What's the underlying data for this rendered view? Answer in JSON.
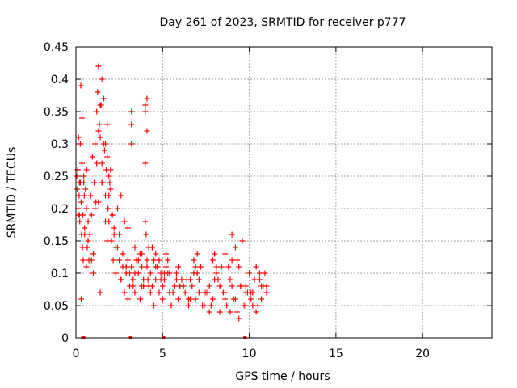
{
  "chart_data": {
    "type": "scatter",
    "title": "Day 261 of 2023, SRMTID for receiver p777",
    "xlabel": "GPS time / hours",
    "ylabel": "SRMTID / TECUs",
    "xlim": [
      0,
      24
    ],
    "ylim": [
      0,
      0.45
    ],
    "xticks": [
      0,
      5,
      10,
      15,
      20
    ],
    "yticks": [
      0,
      0.05,
      0.1,
      0.15,
      0.2,
      0.25,
      0.3,
      0.35,
      0.4,
      0.45
    ],
    "grid": true,
    "marker": "+",
    "color": "#ff0000",
    "series": [
      {
        "name": "SRMTID",
        "x": [
          0.05,
          0.08,
          0.1,
          0.12,
          0.15,
          0.18,
          0.2,
          0.22,
          0.25,
          0.28,
          0.3,
          0.32,
          0.35,
          0.38,
          0.4,
          0.42,
          0.45,
          0.48,
          0.5,
          0.55,
          0.6,
          0.62,
          0.65,
          0.7,
          0.75,
          0.8,
          0.85,
          0.9,
          0.95,
          1.0,
          1.05,
          1.1,
          1.15,
          1.2,
          1.25,
          1.3,
          1.35,
          1.4,
          1.45,
          1.5,
          1.55,
          1.6,
          1.65,
          1.7,
          1.75,
          1.8,
          1.85,
          1.9,
          1.95,
          2.0,
          2.05,
          2.1,
          2.15,
          2.2,
          2.3,
          2.4,
          2.5,
          2.6,
          2.7,
          2.8,
          2.9,
          3.0,
          3.1,
          3.2,
          3.3,
          3.4,
          3.5,
          3.6,
          3.7,
          3.8,
          3.9,
          4.0,
          4.05,
          4.1,
          4.15,
          4.2,
          4.3,
          4.4,
          4.5,
          4.6,
          4.7,
          4.8,
          4.9,
          5.0,
          5.1,
          5.2,
          5.3,
          5.5,
          5.7,
          5.9,
          6.1,
          6.3,
          6.5,
          6.7,
          6.9,
          7.1,
          7.3,
          7.5,
          7.7,
          7.9,
          8.1,
          8.3,
          8.5,
          8.7,
          8.9,
          9.1,
          9.3,
          9.5,
          9.7,
          9.9,
          10.1,
          10.3,
          10.5,
          10.7,
          10.9,
          11.0,
          0.3,
          0.5,
          0.7,
          0.9,
          1.1,
          1.3,
          1.5,
          1.7,
          1.9,
          2.1,
          2.3,
          2.5,
          2.7,
          2.9,
          3.1,
          3.3,
          3.5,
          3.7,
          3.9,
          4.1,
          4.3,
          4.5,
          4.7,
          4.9,
          5.1,
          5.3,
          5.6,
          5.9,
          6.2,
          6.5,
          6.8,
          7.1,
          7.4,
          7.7,
          8.0,
          8.3,
          8.6,
          8.9,
          9.2,
          9.5,
          9.8,
          10.1,
          10.4,
          10.7,
          11.0,
          0.2,
          0.6,
          1.0,
          1.4,
          1.8,
          2.2,
          2.6,
          3.0,
          3.4,
          3.8,
          4.2,
          4.6,
          5.0,
          5.4,
          5.8,
          6.2,
          6.6,
          7.0,
          7.4,
          7.8,
          8.2,
          8.6,
          9.0,
          9.4,
          9.8,
          10.2,
          10.6,
          1.2,
          1.3,
          1.4,
          1.5,
          1.6,
          1.7,
          1.8,
          1.9,
          2.0,
          0.1,
          0.15,
          0.25,
          0.35,
          0.45,
          3.2,
          3.2,
          3.2,
          4.0,
          4.0,
          4.0,
          4.1,
          4.1,
          9.0,
          9.2,
          9.3,
          9.4,
          9.6,
          8.6,
          6.8,
          6.9,
          7.0,
          7.9,
          8.0,
          8.1,
          2.4,
          2.6,
          2.8,
          3.0,
          3.4,
          3.6,
          3.8,
          4.4,
          4.6,
          4.8,
          5.2,
          5.4,
          5.8,
          6.0,
          6.4,
          6.6,
          7.2,
          7.6,
          8.4,
          8.8,
          9.0,
          9.8,
          10.0,
          10.2,
          10.4,
          10.6,
          10.8
        ],
        "y": [
          0.25,
          0.23,
          0.26,
          0.2,
          0.31,
          0.22,
          0.24,
          0.18,
          0.3,
          0.39,
          0.21,
          0.16,
          0.27,
          0.14,
          0.19,
          0.12,
          0.24,
          0.22,
          0.16,
          0.23,
          0.2,
          0.26,
          0.14,
          0.18,
          0.12,
          0.16,
          0.22,
          0.19,
          0.28,
          0.13,
          0.24,
          0.3,
          0.21,
          0.35,
          0.38,
          0.42,
          0.33,
          0.31,
          0.36,
          0.27,
          0.24,
          0.3,
          0.29,
          0.22,
          0.26,
          0.33,
          0.2,
          0.18,
          0.24,
          0.23,
          0.15,
          0.19,
          0.12,
          0.16,
          0.1,
          0.14,
          0.12,
          0.09,
          0.11,
          0.07,
          0.1,
          0.12,
          0.08,
          0.11,
          0.09,
          0.07,
          0.12,
          0.1,
          0.13,
          0.11,
          0.08,
          0.18,
          0.16,
          0.12,
          0.09,
          0.14,
          0.1,
          0.08,
          0.12,
          0.09,
          0.11,
          0.07,
          0.1,
          0.08,
          0.09,
          0.13,
          0.1,
          0.05,
          0.08,
          0.06,
          0.09,
          0.07,
          0.05,
          0.08,
          0.06,
          0.09,
          0.05,
          0.07,
          0.08,
          0.06,
          0.1,
          0.04,
          0.07,
          0.05,
          0.09,
          0.06,
          0.04,
          0.08,
          0.05,
          0.07,
          0.06,
          0.09,
          0.05,
          0.08,
          0.1,
          0.07,
          0.06,
          0.17,
          0.15,
          0.12,
          0.2,
          0.21,
          0.24,
          0.18,
          0.22,
          0.19,
          0.14,
          0.16,
          0.13,
          0.11,
          0.1,
          0.08,
          0.12,
          0.06,
          0.09,
          0.11,
          0.07,
          0.05,
          0.11,
          0.09,
          0.1,
          0.12,
          0.07,
          0.11,
          0.08,
          0.06,
          0.1,
          0.07,
          0.05,
          0.04,
          0.09,
          0.08,
          0.07,
          0.04,
          0.06,
          0.08,
          0.05,
          0.07,
          0.04,
          0.06,
          0.08,
          0.19,
          0.11,
          0.1,
          0.07,
          0.15,
          0.17,
          0.09,
          0.06,
          0.1,
          0.13,
          0.08,
          0.11,
          0.06,
          0.07,
          0.09,
          0.08,
          0.06,
          0.1,
          0.07,
          0.05,
          0.09,
          0.06,
          0.08,
          0.03,
          0.07,
          0.05,
          0.09,
          0.27,
          0.32,
          0.36,
          0.4,
          0.37,
          0.3,
          0.28,
          0.25,
          0.26,
          0.26,
          0.19,
          0.24,
          0.34,
          0.25,
          0.35,
          0.33,
          0.3,
          0.36,
          0.35,
          0.27,
          0.37,
          0.32,
          0.16,
          0.14,
          0.12,
          0.11,
          0.15,
          0.13,
          0.12,
          0.11,
          0.13,
          0.12,
          0.13,
          0.11,
          0.2,
          0.22,
          0.18,
          0.17,
          0.14,
          0.12,
          0.08,
          0.14,
          0.13,
          0.12,
          0.11,
          0.1,
          0.1,
          0.08,
          0.09,
          0.09,
          0.11,
          0.07,
          0.11,
          0.11,
          0.12,
          0.08,
          0.1,
          0.07,
          0.11,
          0.1,
          0.08
        ]
      }
    ],
    "baseline_marks_x": [
      0.4,
      0.45,
      3.15,
      5.05,
      9.75
    ]
  }
}
